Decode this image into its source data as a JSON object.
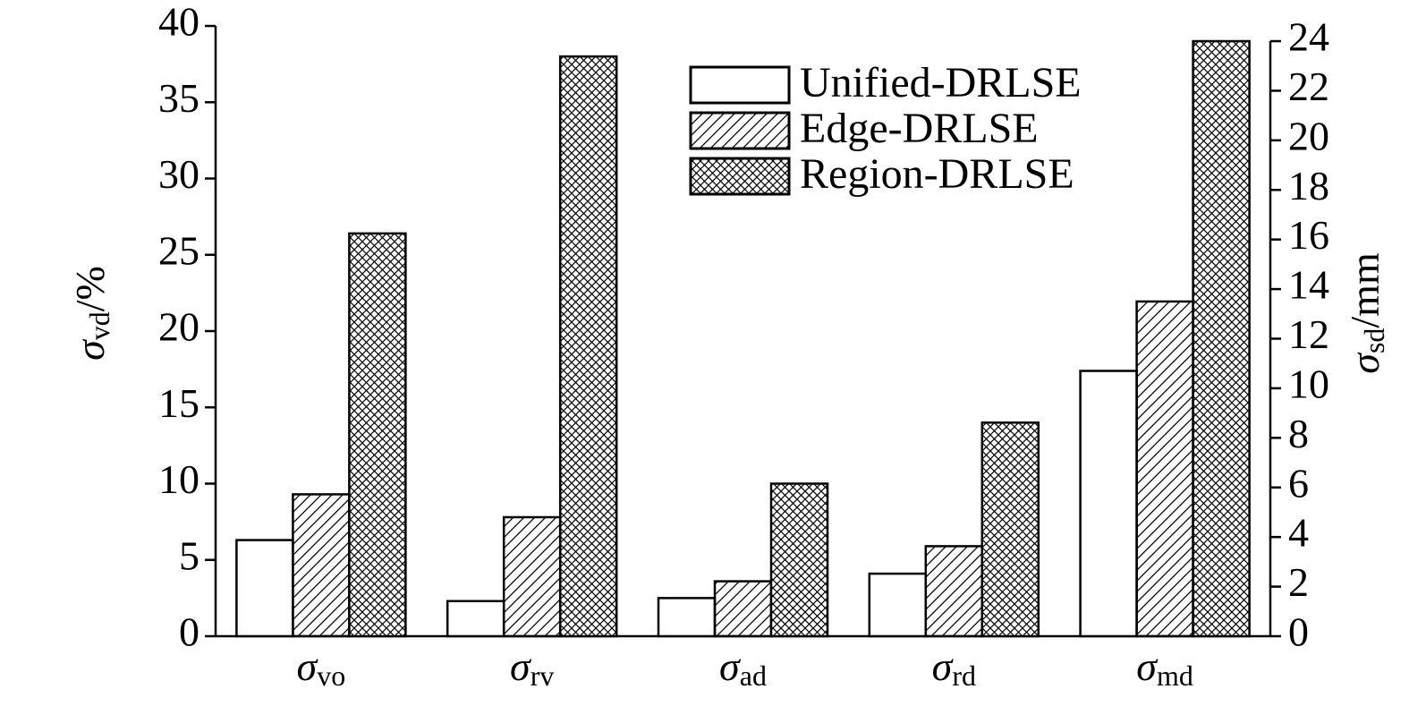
{
  "chart_data": {
    "type": "bar",
    "categories": [
      {
        "symbol": "σ",
        "subscript": "vo"
      },
      {
        "symbol": "σ",
        "subscript": "rv"
      },
      {
        "symbol": "σ",
        "subscript": "ad"
      },
      {
        "symbol": "σ",
        "subscript": "rd"
      },
      {
        "symbol": "σ",
        "subscript": "md"
      }
    ],
    "category_axis": [
      "y",
      "y",
      "y",
      "y",
      "y2"
    ],
    "series": [
      {
        "name": "Unified-DRLSE",
        "color": "#000000",
        "pattern": "none",
        "values": [
          6.3,
          2.3,
          2.5,
          4.1,
          10.7
        ]
      },
      {
        "name": "Edge-DRLSE",
        "color": "#000000",
        "pattern": "hatch",
        "values": [
          9.3,
          7.8,
          3.6,
          5.9,
          13.5
        ]
      },
      {
        "name": "Region-DRLSE",
        "color": "#000000",
        "pattern": "crosshatch",
        "values": [
          26.4,
          38.0,
          10.0,
          14.0,
          24.0
        ]
      }
    ],
    "ylabel": {
      "symbol": "σ",
      "subscript": "vd",
      "unit": "/%"
    },
    "y2label": {
      "symbol": "σ",
      "subscript": "sd",
      "unit": "/mm"
    },
    "ylim": [
      0,
      40
    ],
    "yticks": [
      0,
      5,
      10,
      15,
      20,
      25,
      30,
      35,
      40
    ],
    "y2lim": [
      0,
      24
    ],
    "y2ticks": [
      0,
      2,
      4,
      6,
      8,
      10,
      12,
      14,
      16,
      18,
      20,
      22,
      24
    ],
    "legend": "top-right",
    "grid": false
  }
}
